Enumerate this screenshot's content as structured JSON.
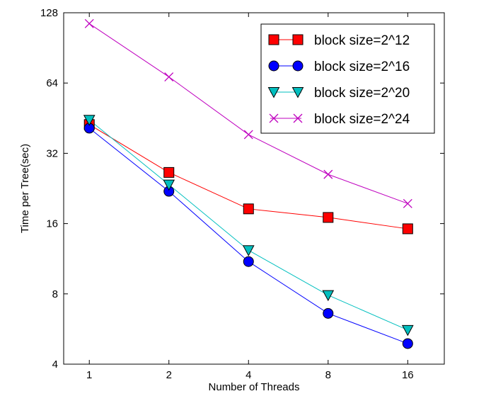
{
  "chart_data": {
    "type": "line",
    "xscale": "log2",
    "yscale": "log2",
    "x": [
      1,
      2,
      4,
      8,
      16
    ],
    "xticks": [
      "1",
      "2",
      "4",
      "8",
      "16"
    ],
    "yticks": [
      "4",
      "8",
      "16",
      "32",
      "64",
      "128"
    ],
    "xlim": [
      0.8,
      22
    ],
    "ylim": [
      4,
      128
    ],
    "xlabel": "Number of Threads",
    "ylabel": "Time per Tree(sec)",
    "legend_position": "top-right",
    "series": [
      {
        "name": "block size=2^12",
        "values": [
          42.5,
          26.5,
          18.5,
          17.0,
          15.2
        ],
        "color": "#ff0000",
        "marker": "square"
      },
      {
        "name": "block size=2^16",
        "values": [
          41.0,
          22.0,
          11.0,
          6.6,
          4.9
        ],
        "color": "#0000ff",
        "marker": "circle"
      },
      {
        "name": "block size=2^20",
        "values": [
          44.5,
          23.5,
          12.3,
          7.9,
          5.6
        ],
        "color": "#00bfbf",
        "marker": "triangle-down"
      },
      {
        "name": "block size=2^24",
        "values": [
          115.0,
          68.0,
          38.5,
          26.0,
          19.5
        ],
        "color": "#bf00bf",
        "marker": "x"
      }
    ]
  }
}
